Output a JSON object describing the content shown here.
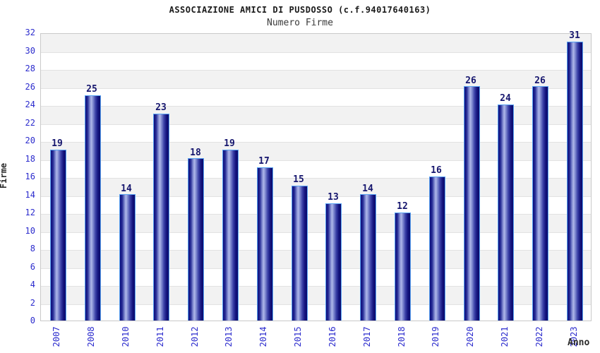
{
  "chart_data": {
    "type": "bar",
    "title": "ASSOCIAZIONE AMICI DI PUSDOSSO (c.f.94017640163)",
    "subtitle": "Numero Firme",
    "xlabel": "Anno",
    "ylabel": "Firme",
    "categories": [
      "2007",
      "2008",
      "2010",
      "2011",
      "2012",
      "2013",
      "2014",
      "2015",
      "2016",
      "2017",
      "2018",
      "2019",
      "2020",
      "2021",
      "2022",
      "2023"
    ],
    "values": [
      19,
      25,
      14,
      23,
      18,
      19,
      17,
      15,
      13,
      14,
      12,
      16,
      26,
      24,
      26,
      31
    ],
    "ylim": [
      0,
      32
    ],
    "ytick_step": 2,
    "grid": "horizontal-alternating-bands",
    "legend": "none",
    "colors": {
      "bar_dark": "#0d0d7b",
      "bar_highlight": "#b0b8ea",
      "bar_border": "#58a2f2",
      "tick_label_blue": "#2b2bcd",
      "value_label_navy": "#16166e",
      "band_gray": "#f2f2f2",
      "gridline": "#e2e2e2",
      "plot_border": "#c9c9c9",
      "title_color": "#1a1a1a",
      "axis_label_color": "#2b2b2b"
    }
  }
}
